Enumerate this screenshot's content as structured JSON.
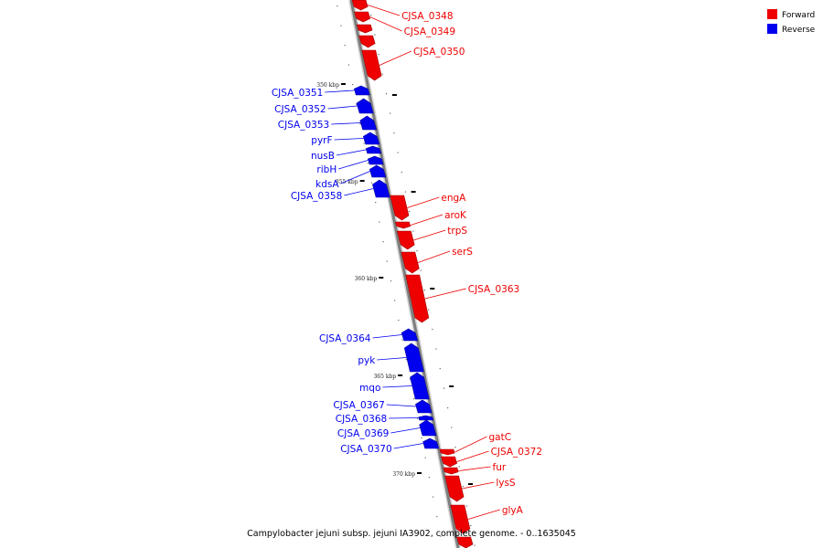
{
  "colors": {
    "forward": "#ee0000",
    "reverse": "#0000ee"
  },
  "legend": [
    {
      "label": "Forward",
      "color": "#ee0000"
    },
    {
      "label": "Reverse",
      "color": "#0000ee"
    }
  ],
  "caption": "Campylobacter jejuni subsp. jejuni IA3902, complete genome. - 0..1635045",
  "ticks": [
    {
      "label": "350 kbp"
    },
    {
      "label": "355 kbp"
    },
    {
      "label": "360 kbp"
    },
    {
      "label": "365 kbp"
    },
    {
      "label": "370 kbp"
    }
  ],
  "genes": [
    {
      "name": "CJSA_0348",
      "strand": "forward"
    },
    {
      "name": "CJSA_0349",
      "strand": "forward"
    },
    {
      "name": "CJSA_0350",
      "strand": "forward"
    },
    {
      "name": "CJSA_0351",
      "strand": "reverse"
    },
    {
      "name": "CJSA_0352",
      "strand": "reverse"
    },
    {
      "name": "CJSA_0353",
      "strand": "reverse"
    },
    {
      "name": "pyrF",
      "strand": "reverse"
    },
    {
      "name": "nusB",
      "strand": "reverse"
    },
    {
      "name": "ribH",
      "strand": "reverse"
    },
    {
      "name": "kdsA",
      "strand": "reverse"
    },
    {
      "name": "CJSA_0358",
      "strand": "reverse"
    },
    {
      "name": "engA",
      "strand": "forward"
    },
    {
      "name": "aroK",
      "strand": "forward"
    },
    {
      "name": "trpS",
      "strand": "forward"
    },
    {
      "name": "serS",
      "strand": "forward"
    },
    {
      "name": "CJSA_0363",
      "strand": "forward"
    },
    {
      "name": "CJSA_0364",
      "strand": "reverse"
    },
    {
      "name": "pyk",
      "strand": "reverse"
    },
    {
      "name": "mqo",
      "strand": "reverse"
    },
    {
      "name": "CJSA_0367",
      "strand": "reverse"
    },
    {
      "name": "CJSA_0368",
      "strand": "reverse"
    },
    {
      "name": "CJSA_0369",
      "strand": "reverse"
    },
    {
      "name": "CJSA_0370",
      "strand": "reverse"
    },
    {
      "name": "gatC",
      "strand": "forward"
    },
    {
      "name": "CJSA_0372",
      "strand": "forward"
    },
    {
      "name": "fur",
      "strand": "forward"
    },
    {
      "name": "lysS",
      "strand": "forward"
    },
    {
      "name": "glyA",
      "strand": "forward"
    }
  ]
}
